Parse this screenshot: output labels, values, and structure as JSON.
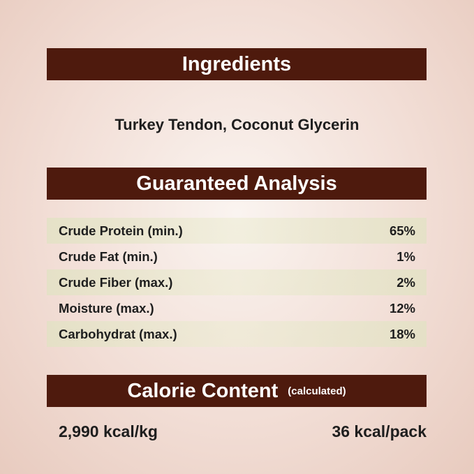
{
  "ingredients": {
    "title": "Ingredients",
    "text": "Turkey Tendon, Coconut Glycerin"
  },
  "analysis": {
    "title": "Guaranteed Analysis",
    "rows": [
      {
        "label": "Crude Protein (min.)",
        "value": "65%"
      },
      {
        "label": "Crude Fat (min.)",
        "value": "1%"
      },
      {
        "label": "Crude Fiber (max.)",
        "value": "2%"
      },
      {
        "label": "Moisture (max.)",
        "value": "12%"
      },
      {
        "label": "Carbohydrat (max.)",
        "value": "18%"
      }
    ]
  },
  "calorie": {
    "title": "Calorie Content",
    "note": "(calculated)",
    "per_kg": "2,990 kcal/kg",
    "per_pack": "36 kcal/pack"
  },
  "colors": {
    "banner": "#4e1a0d",
    "row_shade": "#e4e4c8"
  }
}
